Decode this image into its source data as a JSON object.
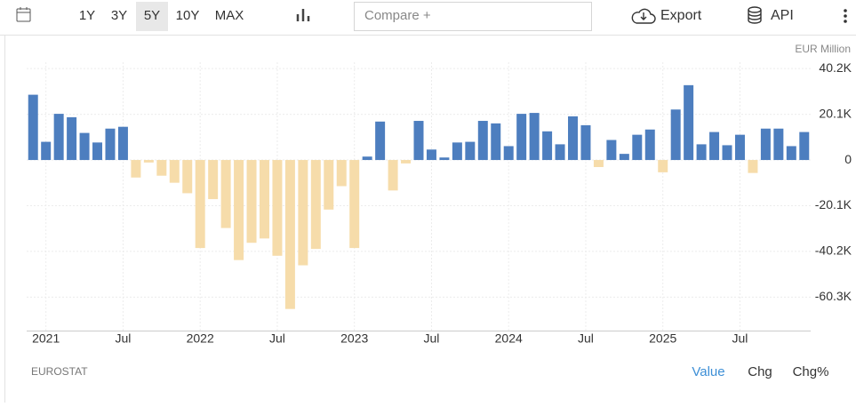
{
  "toolbar": {
    "ranges": [
      "1Y",
      "3Y",
      "5Y",
      "10Y",
      "MAX"
    ],
    "selected_range": "5Y",
    "compare": "Compare +",
    "export": "Export",
    "api": "API"
  },
  "chart_data": {
    "type": "bar",
    "unit_label": "EUR Million",
    "categories": [
      null,
      "2021",
      null,
      null,
      null,
      null,
      null,
      "Jul",
      null,
      null,
      null,
      null,
      null,
      "2022",
      null,
      null,
      null,
      null,
      null,
      "Jul",
      null,
      null,
      null,
      null,
      null,
      "2023",
      null,
      null,
      null,
      null,
      null,
      "Jul",
      null,
      null,
      null,
      null,
      null,
      "2024",
      null,
      null,
      null,
      null,
      null,
      "Jul",
      null,
      null,
      null,
      null,
      null,
      "2025",
      null,
      null,
      null,
      null,
      null,
      "Jul",
      null,
      null,
      null,
      null,
      null
    ],
    "values": [
      28700,
      8000,
      20300,
      18800,
      11900,
      7700,
      13800,
      14600,
      -7700,
      -1100,
      -6900,
      -10000,
      -14600,
      -38700,
      -17200,
      -29900,
      -44000,
      -36400,
      -34500,
      -42100,
      -65500,
      -46300,
      -39100,
      -21800,
      -11500,
      -38700,
      1500,
      16900,
      -13400,
      -1500,
      17200,
      4600,
      1100,
      7700,
      8000,
      17200,
      16100,
      6100,
      20300,
      20700,
      12600,
      6900,
      19200,
      15300,
      -3100,
      8800,
      2700,
      11100,
      13400,
      -5400,
      22200,
      32900,
      6900,
      12300,
      6500,
      11100,
      -5700,
      13800,
      13800,
      6100,
      12300
    ],
    "color": "#4d7ebf",
    "negative_color": "#f6dcaa",
    "ylim": [
      -75000,
      43000
    ],
    "yticks": [
      {
        "value": 40200,
        "label": "40.2K"
      },
      {
        "value": 20100,
        "label": "20.1K"
      },
      0,
      {
        "value": -20100,
        "label": "-20.1K"
      },
      {
        "value": -40200,
        "label": "-40.2K"
      },
      {
        "value": -60300,
        "label": "-60.3K"
      }
    ],
    "grid": true
  },
  "footer": {
    "source": "EUROSTAT",
    "modes": [
      "Value",
      "Chg",
      "Chg%"
    ],
    "selected_mode": "Value"
  }
}
